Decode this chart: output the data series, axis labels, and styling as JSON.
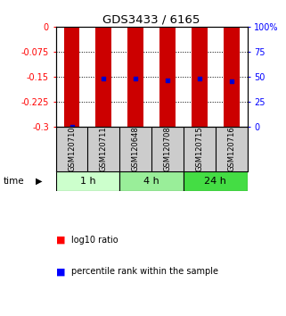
{
  "title": "GDS3433 / 6165",
  "samples": [
    "GSM120710",
    "GSM120711",
    "GSM120648",
    "GSM120708",
    "GSM120715",
    "GSM120716"
  ],
  "groups": [
    {
      "label": "1 h",
      "indices": [
        0,
        1
      ],
      "color": "#ccffcc"
    },
    {
      "label": "4 h",
      "indices": [
        2,
        3
      ],
      "color": "#99ee99"
    },
    {
      "label": "24 h",
      "indices": [
        4,
        5
      ],
      "color": "#44dd44"
    }
  ],
  "log10_ratio_bottom": [
    -0.3,
    -0.3,
    -0.3,
    -0.3,
    -0.3,
    -0.3
  ],
  "log10_ratio_top": [
    0,
    0,
    0,
    0,
    0,
    0
  ],
  "percentile_rank": [
    0,
    48,
    48,
    47,
    48,
    46
  ],
  "left_yticks": [
    0,
    -0.075,
    -0.15,
    -0.225,
    -0.3
  ],
  "right_yticks": [
    100,
    75,
    50,
    25,
    0
  ],
  "right_yticklabels": [
    "100%",
    "75",
    "50",
    "25",
    "0"
  ],
  "bar_color": "#cc0000",
  "dot_color": "#0000cc",
  "bg_color": "#ffffff",
  "sample_label_bg": "#cccccc",
  "grid_dotted_at": [
    -0.075,
    -0.15,
    -0.225
  ],
  "bar_width": 0.5
}
